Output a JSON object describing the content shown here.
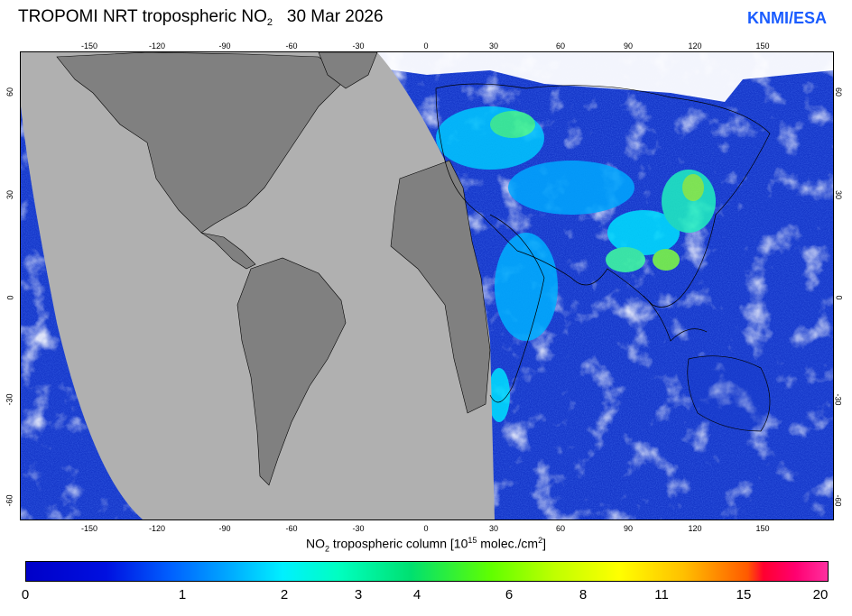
{
  "header": {
    "title_main": "TROPOMI  NRT tropospheric NO",
    "title_sub": "2",
    "title_date": "30 Mar 2026",
    "brand": "KNMI/ESA"
  },
  "axes": {
    "lon_ticks": [
      "-150",
      "-120",
      "-90",
      "-60",
      "-30",
      "0",
      "30",
      "60",
      "90",
      "120",
      "150"
    ],
    "lat_ticks_left": [
      "60",
      "30",
      "0",
      "-30",
      "-60"
    ],
    "lat_ticks_right": [
      "60",
      "30",
      "0",
      "-30",
      "-60"
    ]
  },
  "colorbar": {
    "title_a": "NO",
    "title_sub": "2",
    "title_b": " tropospheric column [10",
    "title_sup_a": "15",
    "title_c": " molec./cm",
    "title_sup_b": "2",
    "title_d": "]",
    "labels": [
      "0",
      "1",
      "2",
      "3",
      "4",
      "6",
      "8",
      "11",
      "15",
      "20"
    ]
  },
  "colors": {
    "ocean": "#1537c9",
    "land_nodata": "#808080",
    "nodata_swath": "#b0b0b0",
    "brand": "#1a5cff"
  }
}
